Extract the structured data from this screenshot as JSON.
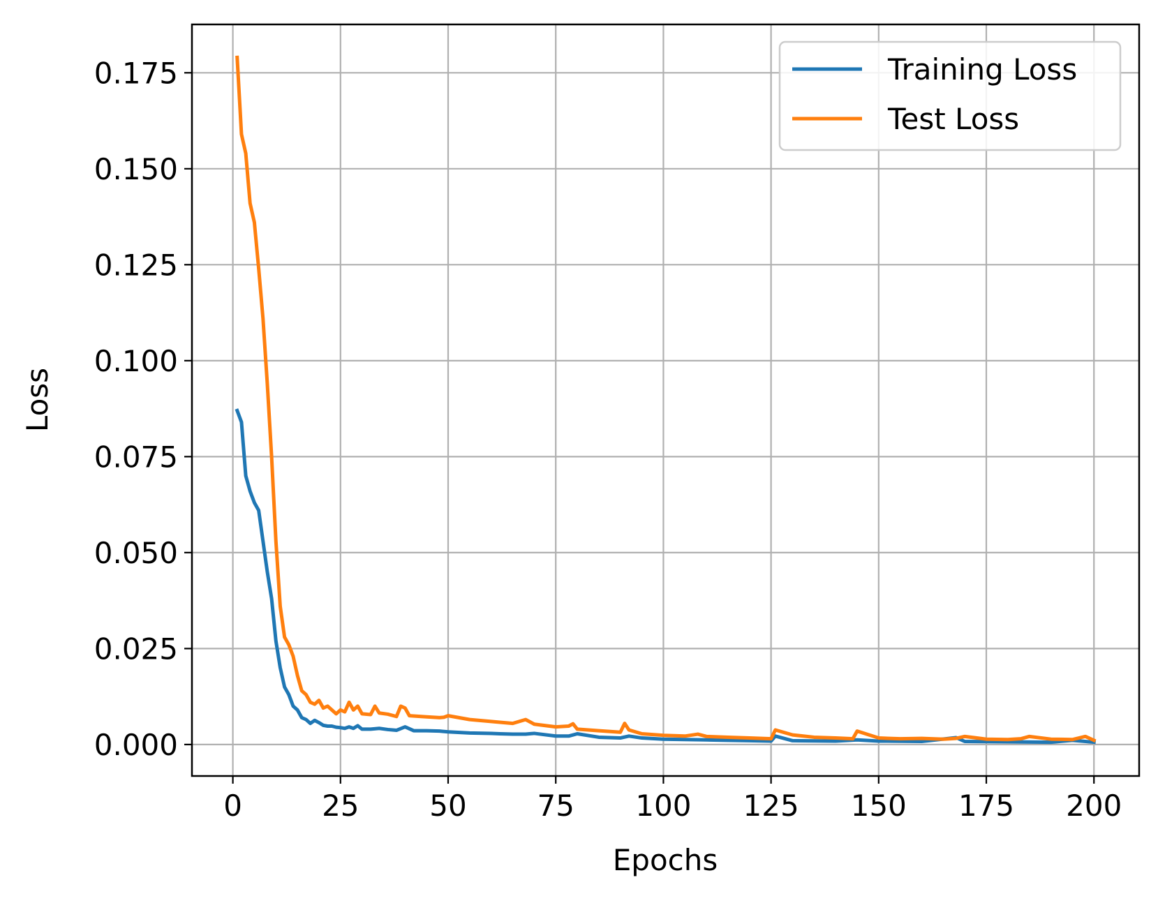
{
  "chart_data": {
    "type": "line",
    "title": "",
    "xlabel": "Epochs",
    "ylabel": "Loss",
    "xlim": [
      -9.5,
      210.5
    ],
    "ylim": [
      -0.0082,
      0.1876
    ],
    "xticks": [
      0,
      25,
      50,
      75,
      100,
      125,
      150,
      175,
      200
    ],
    "xtick_labels": [
      "0",
      "25",
      "50",
      "75",
      "100",
      "125",
      "150",
      "175",
      "200"
    ],
    "yticks": [
      0.0,
      0.025,
      0.05,
      0.075,
      0.1,
      0.125,
      0.15,
      0.175
    ],
    "ytick_labels": [
      "0.000",
      "0.025",
      "0.050",
      "0.075",
      "0.100",
      "0.125",
      "0.150",
      "0.175"
    ],
    "grid": true,
    "legend_position": "upper right",
    "colors": {
      "training": "#1f77b4",
      "test": "#ff7f0e",
      "grid": "#b0b0b0",
      "axes": "#000000"
    },
    "series": [
      {
        "name": "Training Loss",
        "color": "#1f77b4",
        "x": [
          1,
          2,
          3,
          4,
          5,
          6,
          7,
          8,
          9,
          10,
          11,
          12,
          13,
          14,
          15,
          16,
          17,
          18,
          19,
          20,
          21,
          22,
          23,
          24,
          25,
          26,
          27,
          28,
          29,
          30,
          32,
          34,
          36,
          38,
          40,
          42,
          45,
          48,
          50,
          55,
          60,
          62,
          65,
          68,
          70,
          75,
          78,
          80,
          85,
          90,
          92,
          95,
          100,
          105,
          110,
          115,
          120,
          125,
          126,
          130,
          140,
          145,
          150,
          160,
          168,
          170,
          180,
          190,
          195,
          200
        ],
        "y": [
          0.087,
          0.084,
          0.07,
          0.066,
          0.063,
          0.061,
          0.053,
          0.045,
          0.038,
          0.027,
          0.02,
          0.015,
          0.013,
          0.01,
          0.009,
          0.007,
          0.0065,
          0.0055,
          0.0063,
          0.0057,
          0.005,
          0.0048,
          0.0048,
          0.0045,
          0.0044,
          0.0042,
          0.0046,
          0.0042,
          0.0049,
          0.004,
          0.004,
          0.0042,
          0.0039,
          0.0037,
          0.0046,
          0.0036,
          0.0036,
          0.0035,
          0.0033,
          0.003,
          0.0029,
          0.0028,
          0.0027,
          0.0027,
          0.0029,
          0.0022,
          0.0022,
          0.0028,
          0.0019,
          0.0017,
          0.0022,
          0.0017,
          0.0014,
          0.0013,
          0.0012,
          0.0011,
          0.001,
          0.0009,
          0.0022,
          0.001,
          0.0009,
          0.0012,
          0.0009,
          0.0008,
          0.0018,
          0.0008,
          0.0007,
          0.0006,
          0.0011,
          0.0006
        ]
      },
      {
        "name": "Test Loss",
        "color": "#ff7f0e",
        "x": [
          1,
          2,
          3,
          4,
          5,
          6,
          7,
          8,
          9,
          10,
          11,
          12,
          13,
          14,
          15,
          16,
          17,
          18,
          19,
          20,
          21,
          22,
          23,
          24,
          25,
          26,
          27,
          28,
          29,
          30,
          32,
          33,
          34,
          36,
          38,
          39,
          40,
          41,
          45,
          48,
          49,
          50,
          55,
          60,
          62,
          65,
          68,
          70,
          75,
          78,
          79,
          80,
          85,
          90,
          91,
          92,
          95,
          100,
          105,
          108,
          110,
          115,
          120,
          125,
          126,
          130,
          135,
          140,
          144,
          145,
          150,
          155,
          160,
          165,
          168,
          170,
          175,
          180,
          183,
          185,
          190,
          195,
          198,
          200
        ],
        "y": [
          0.179,
          0.159,
          0.154,
          0.141,
          0.136,
          0.124,
          0.111,
          0.094,
          0.075,
          0.053,
          0.036,
          0.028,
          0.026,
          0.023,
          0.018,
          0.014,
          0.013,
          0.011,
          0.0105,
          0.0115,
          0.0095,
          0.01,
          0.009,
          0.008,
          0.009,
          0.0085,
          0.011,
          0.009,
          0.01,
          0.008,
          0.0078,
          0.01,
          0.0082,
          0.0079,
          0.0073,
          0.01,
          0.0095,
          0.0075,
          0.0072,
          0.007,
          0.0071,
          0.0075,
          0.0065,
          0.006,
          0.0058,
          0.0055,
          0.0065,
          0.0053,
          0.0046,
          0.0048,
          0.0054,
          0.004,
          0.0036,
          0.0032,
          0.0055,
          0.0038,
          0.0028,
          0.0024,
          0.0022,
          0.0027,
          0.0021,
          0.0019,
          0.0017,
          0.0015,
          0.0038,
          0.0025,
          0.0019,
          0.0017,
          0.0015,
          0.0035,
          0.0017,
          0.0015,
          0.0016,
          0.0014,
          0.0016,
          0.0021,
          0.0014,
          0.0013,
          0.0015,
          0.0021,
          0.0014,
          0.0013,
          0.0021,
          0.0011
        ]
      }
    ]
  }
}
